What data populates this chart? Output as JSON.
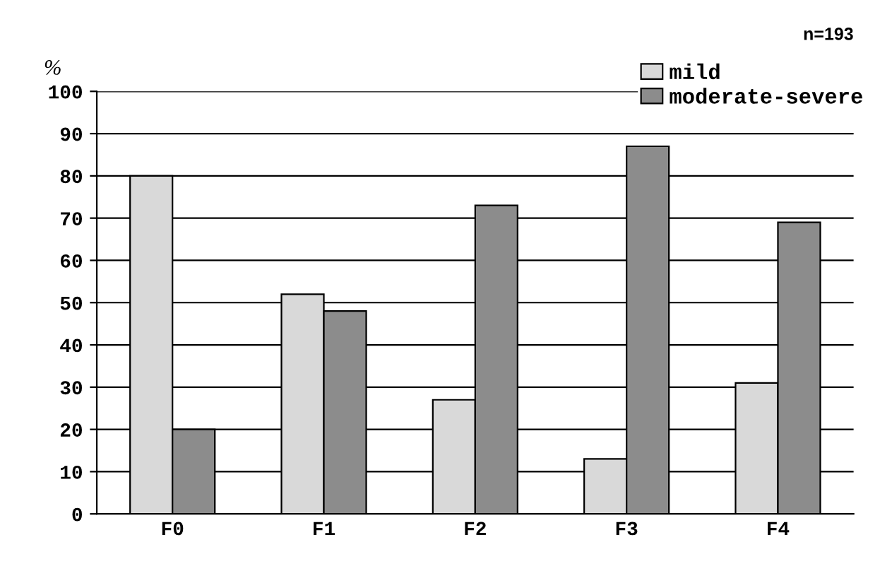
{
  "chart_data": {
    "type": "bar",
    "ylabel": "%",
    "annotations": [
      "n=193"
    ],
    "categories": [
      "F0",
      "F1",
      "F2",
      "F3",
      "F4"
    ],
    "series": [
      {
        "name": "mild",
        "color": "#d9d9d9",
        "values": [
          80,
          52,
          27,
          13,
          31
        ]
      },
      {
        "name": "moderate-severe",
        "color": "#8c8c8c",
        "values": [
          20,
          48,
          73,
          87,
          69
        ]
      }
    ],
    "ylim": [
      0,
      100
    ],
    "yticks": [
      0,
      10,
      20,
      30,
      40,
      50,
      60,
      70,
      80,
      90,
      100
    ],
    "grid": "y",
    "legend": "top right"
  }
}
